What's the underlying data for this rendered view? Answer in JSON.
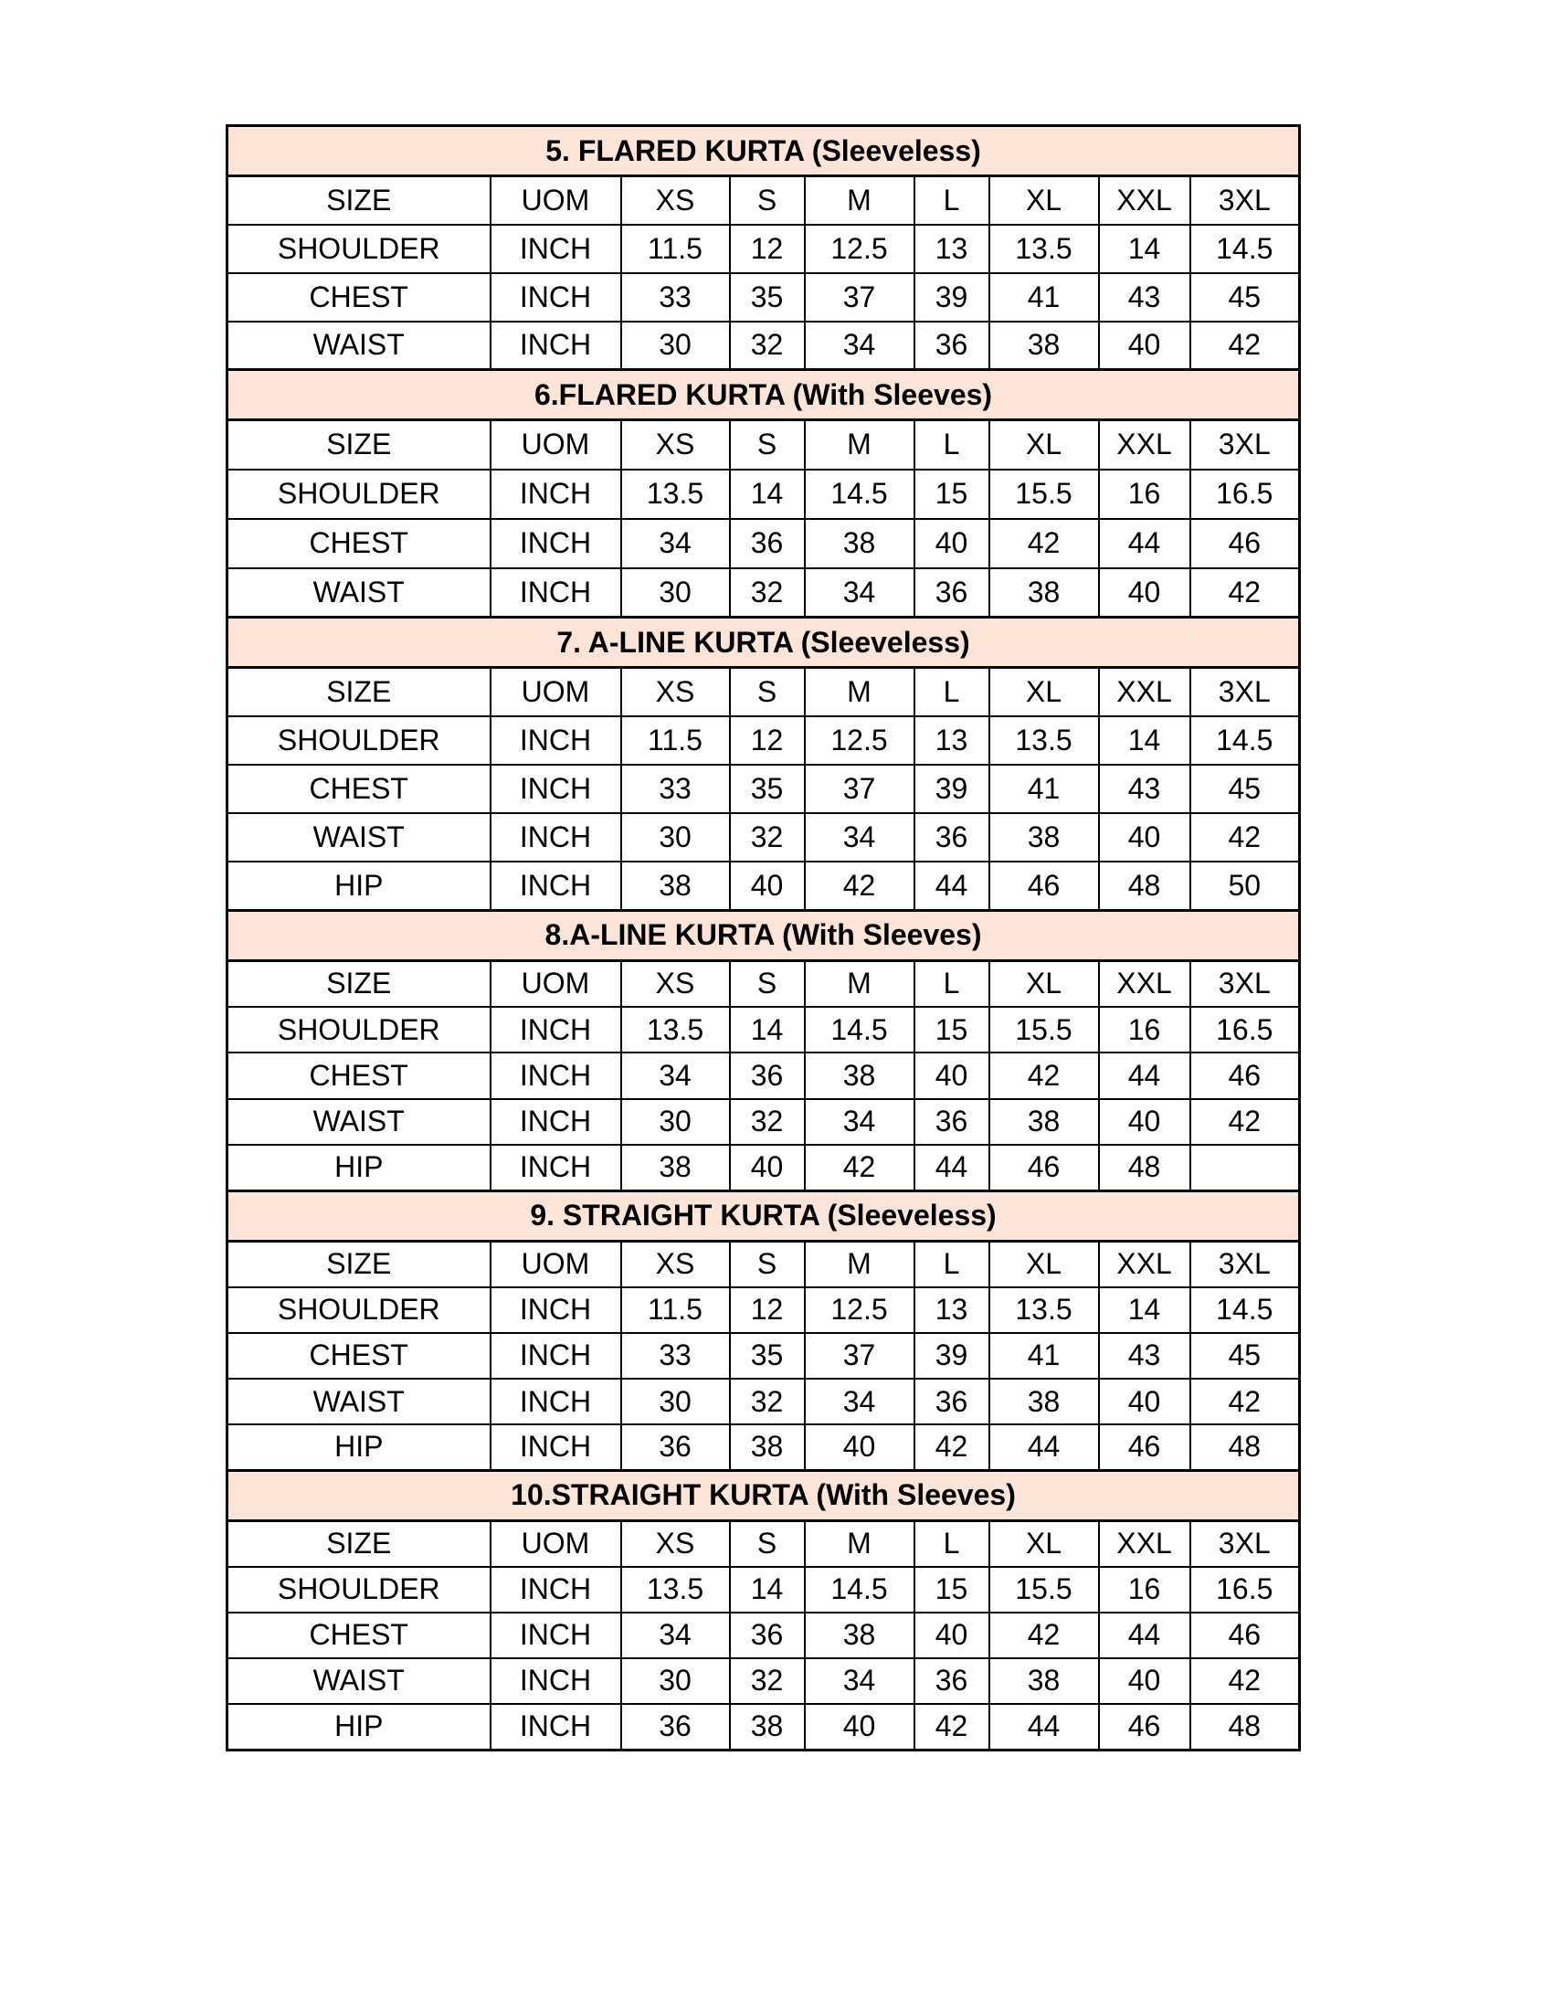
{
  "header_fill": "#fce4d6",
  "sections": [
    {
      "title": "5. FLARED KURTA (Sleeveless)",
      "columns": [
        "SIZE",
        "UOM",
        "XS",
        "S",
        "M",
        "L",
        "XL",
        "XXL",
        "3XL"
      ],
      "rows": [
        [
          "SHOULDER",
          "INCH",
          "11.5",
          "12",
          "12.5",
          "13",
          "13.5",
          "14",
          "14.5"
        ],
        [
          "CHEST",
          "INCH",
          "33",
          "35",
          "37",
          "39",
          "41",
          "43",
          "45"
        ],
        [
          "WAIST",
          "INCH",
          "30",
          "32",
          "34",
          "36",
          "38",
          "40",
          "42"
        ]
      ]
    },
    {
      "title": "6.FLARED KURTA (With Sleeves)",
      "columns": [
        "SIZE",
        "UOM",
        "XS",
        "S",
        "M",
        "L",
        "XL",
        "XXL",
        "3XL"
      ],
      "rows": [
        [
          "SHOULDER",
          "INCH",
          "13.5",
          "14",
          "14.5",
          "15",
          "15.5",
          "16",
          "16.5"
        ],
        [
          "CHEST",
          "INCH",
          "34",
          "36",
          "38",
          "40",
          "42",
          "44",
          "46"
        ],
        [
          "WAIST",
          "INCH",
          "30",
          "32",
          "34",
          "36",
          "38",
          "40",
          "42"
        ]
      ]
    },
    {
      "title": "7. A-LINE KURTA (Sleeveless)",
      "columns": [
        "SIZE",
        "UOM",
        "XS",
        "S",
        "M",
        "L",
        "XL",
        "XXL",
        "3XL"
      ],
      "rows": [
        [
          "SHOULDER",
          "INCH",
          "11.5",
          "12",
          "12.5",
          "13",
          "13.5",
          "14",
          "14.5"
        ],
        [
          "CHEST",
          "INCH",
          "33",
          "35",
          "37",
          "39",
          "41",
          "43",
          "45"
        ],
        [
          "WAIST",
          "INCH",
          "30",
          "32",
          "34",
          "36",
          "38",
          "40",
          "42"
        ],
        [
          "HIP",
          "INCH",
          "38",
          "40",
          "42",
          "44",
          "46",
          "48",
          "50"
        ]
      ]
    },
    {
      "title": "8.A-LINE KURTA (With Sleeves)",
      "columns": [
        "SIZE",
        "UOM",
        "XS",
        "S",
        "M",
        "L",
        "XL",
        "XXL",
        "3XL"
      ],
      "rows": [
        [
          "SHOULDER",
          "INCH",
          "13.5",
          "14",
          "14.5",
          "15",
          "15.5",
          "16",
          "16.5"
        ],
        [
          "CHEST",
          "INCH",
          "34",
          "36",
          "38",
          "40",
          "42",
          "44",
          "46"
        ],
        [
          "WAIST",
          "INCH",
          "30",
          "32",
          "34",
          "36",
          "38",
          "40",
          "42"
        ],
        [
          "HIP",
          "INCH",
          "38",
          "40",
          "42",
          "44",
          "46",
          "48",
          ""
        ]
      ]
    },
    {
      "title": "9. STRAIGHT KURTA (Sleeveless)",
      "columns": [
        "SIZE",
        "UOM",
        "XS",
        "S",
        "M",
        "L",
        "XL",
        "XXL",
        "3XL"
      ],
      "rows": [
        [
          "SHOULDER",
          "INCH",
          "11.5",
          "12",
          "12.5",
          "13",
          "13.5",
          "14",
          "14.5"
        ],
        [
          "CHEST",
          "INCH",
          "33",
          "35",
          "37",
          "39",
          "41",
          "43",
          "45"
        ],
        [
          "WAIST",
          "INCH",
          "30",
          "32",
          "34",
          "36",
          "38",
          "40",
          "42"
        ],
        [
          "HIP",
          "INCH",
          "36",
          "38",
          "40",
          "42",
          "44",
          "46",
          "48"
        ]
      ]
    },
    {
      "title": "10.STRAIGHT KURTA (With Sleeves)",
      "columns": [
        "SIZE",
        "UOM",
        "XS",
        "S",
        "M",
        "L",
        "XL",
        "XXL",
        "3XL"
      ],
      "rows": [
        [
          "SHOULDER",
          "INCH",
          "13.5",
          "14",
          "14.5",
          "15",
          "15.5",
          "16",
          "16.5"
        ],
        [
          "CHEST",
          "INCH",
          "34",
          "36",
          "38",
          "40",
          "42",
          "44",
          "46"
        ],
        [
          "WAIST",
          "INCH",
          "30",
          "32",
          "34",
          "36",
          "38",
          "40",
          "42"
        ],
        [
          "HIP",
          "INCH",
          "36",
          "38",
          "40",
          "42",
          "44",
          "46",
          "48"
        ]
      ]
    }
  ]
}
